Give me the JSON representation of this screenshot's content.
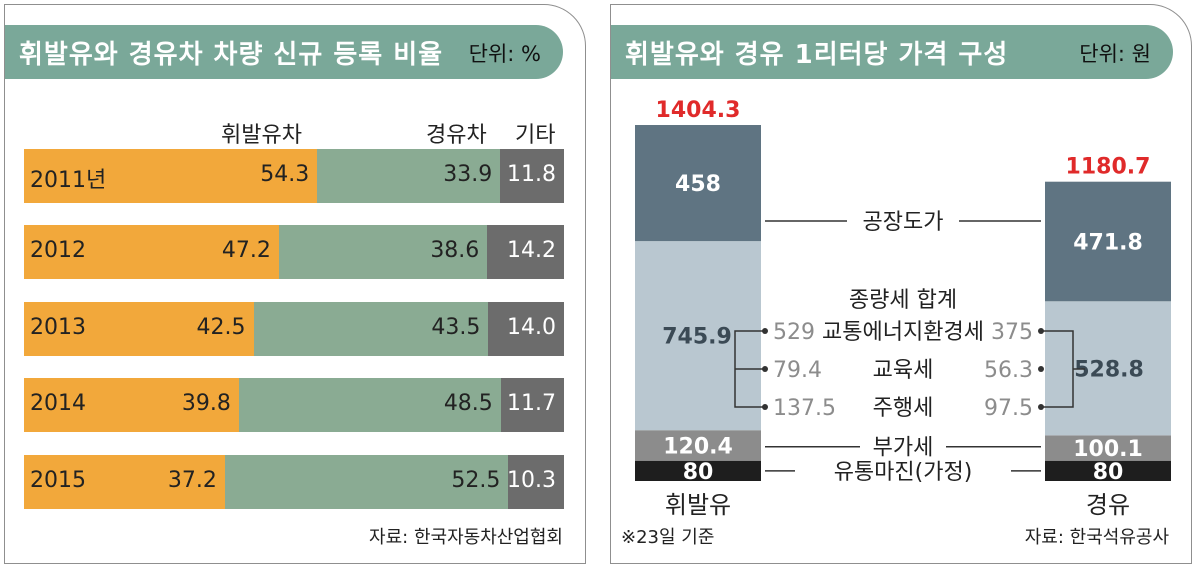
{
  "colors": {
    "header": "#7aa899",
    "diesel_car": "#f2a83b",
    "gasoline_car": "#8aab93",
    "other": "#6c6c6c",
    "factory_price": "#5f7482",
    "taxes": "#b9c7d0",
    "vat": "#8c8c8c",
    "margin": "#1e1e1e",
    "total_label": "#e02a2a"
  },
  "left": {
    "title": "휘발유와 경유차 차량 신규 등록 비율",
    "unit": "단위: %",
    "columns": {
      "diesel_car": "휘발유차",
      "gasoline_car": "경유차",
      "other": "기타"
    },
    "source": "자료: 한국자동차산업협회"
  },
  "right": {
    "title": "휘발유와 경유 1리터당 가격 구성",
    "unit": "단위: 원",
    "note": "※23일 기준",
    "source": "자료: 한국석유공사"
  },
  "chart_data": [
    {
      "type": "bar",
      "orientation": "horizontal",
      "stacked": true,
      "title": "휘발유와 경유차 차량 신규 등록 비율",
      "unit": "단위: %",
      "categories": [
        "2011년",
        "2012",
        "2013",
        "2014",
        "2015"
      ],
      "series": [
        {
          "name": "휘발유차",
          "values": [
            54.3,
            47.2,
            42.5,
            39.8,
            37.2
          ]
        },
        {
          "name": "경유차",
          "values": [
            33.9,
            38.6,
            43.5,
            48.5,
            52.5
          ]
        },
        {
          "name": "기타",
          "values": [
            11.8,
            14.2,
            14.0,
            11.7,
            10.3
          ]
        }
      ],
      "xlim": [
        0,
        100
      ]
    },
    {
      "type": "bar",
      "stacked": true,
      "title": "휘발유와 경유 1리터당 가격 구성",
      "unit": "단위: 원",
      "categories": [
        "휘발유",
        "경유"
      ],
      "totals": [
        "1404.3",
        "1180.7"
      ],
      "series": [
        {
          "name": "유통마진(가정)",
          "values": [
            80,
            80
          ],
          "labels": [
            "80",
            "80"
          ]
        },
        {
          "name": "부가세",
          "values": [
            120.4,
            100.1
          ],
          "labels": [
            "120.4",
            "100.1"
          ]
        },
        {
          "name": "종량세 합계",
          "values": [
            745.9,
            528.8
          ],
          "labels": [
            "745.9",
            "528.8"
          ]
        },
        {
          "name": "공장도가",
          "values": [
            458,
            471.8
          ],
          "labels": [
            "458",
            "471.8"
          ]
        }
      ],
      "tax_breakdown": [
        {
          "name": "교통에너지환경세",
          "values": [
            "529",
            "375"
          ]
        },
        {
          "name": "교육세",
          "values": [
            "79.4",
            "56.3"
          ]
        },
        {
          "name": "주행세",
          "values": [
            "137.5",
            "97.5"
          ]
        }
      ],
      "ylim": [
        0,
        1404.3
      ]
    }
  ]
}
